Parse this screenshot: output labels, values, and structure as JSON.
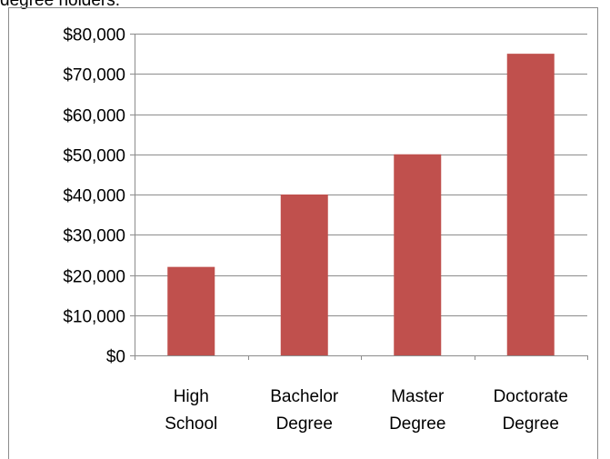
{
  "caption_fragment": "degree holders.",
  "colors": {
    "bar": "#c0504d",
    "gridline": "#8c8c8c",
    "axis": "#8c8c8c",
    "frame": "#8c8c8c"
  },
  "chart_data": {
    "type": "bar",
    "title": "",
    "xlabel": "",
    "ylabel": "",
    "categories": [
      [
        "High",
        "School"
      ],
      [
        "Bachelor",
        "Degree"
      ],
      [
        "Master",
        "Degree"
      ],
      [
        "Doctorate",
        "Degree"
      ]
    ],
    "values": [
      22000,
      40000,
      50000,
      75000
    ],
    "ylim": [
      0,
      80000
    ],
    "yticks": [
      0,
      10000,
      20000,
      30000,
      40000,
      50000,
      60000,
      70000,
      80000
    ],
    "ytick_labels": [
      "$0",
      "$10,000",
      "$20,000",
      "$30,000",
      "$40,000",
      "$50,000",
      "$60,000",
      "$70,000",
      "$80,000"
    ],
    "grid": true,
    "legend": "none"
  }
}
